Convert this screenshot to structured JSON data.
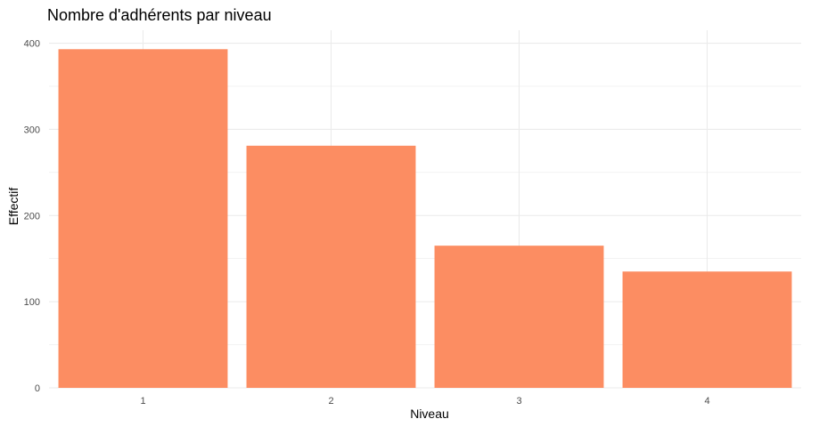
{
  "chart_data": {
    "type": "bar",
    "title": "Nombre d'adhérents par niveau",
    "xlabel": "Niveau",
    "ylabel": "Effectif",
    "categories": [
      "1",
      "2",
      "3",
      "4"
    ],
    "values": [
      393,
      281,
      165,
      135
    ],
    "ylim": [
      0,
      415
    ],
    "yticks": [
      0,
      100,
      200,
      300,
      400
    ],
    "grid": true,
    "legend": "none",
    "bar_color": "#fc8d62",
    "grid_color": "#ebebeb",
    "background": "#ffffff"
  }
}
